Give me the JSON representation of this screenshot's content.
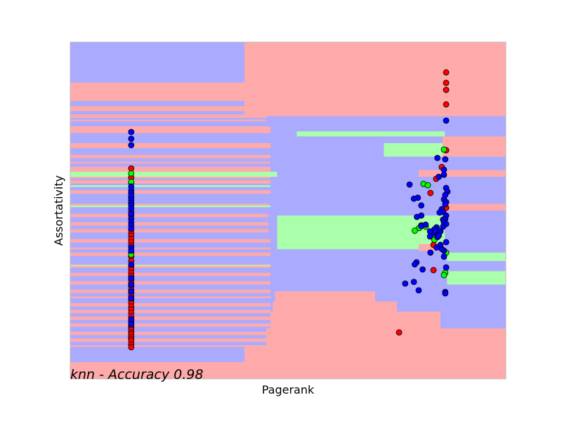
{
  "chart_data": {
    "type": "scatter",
    "title": "",
    "xlabel": "Pagerank",
    "ylabel": "Assortativity",
    "annotation": "knn - Accuracy 0.98",
    "xlim": [
      0,
      100
    ],
    "ylim": [
      0,
      100
    ],
    "ticks_visible": false,
    "grid": false,
    "legend": "none",
    "colors": {
      "region_red": "#FFAAAA",
      "region_green": "#AAFFAA",
      "region_blue": "#AAAAFF",
      "point_red": "#FF0000",
      "point_green": "#00FF00",
      "point_blue": "#0000FF",
      "marker_edge": "#000000",
      "frame": "#bbbbbb"
    },
    "series": [
      {
        "name": "class_red",
        "color": "#FF0000",
        "points": [
          [
            14,
            62.5
          ],
          [
            14,
            59.8
          ],
          [
            14,
            58.3
          ],
          [
            14,
            53.8
          ],
          [
            14,
            49.6
          ],
          [
            14,
            48.5
          ],
          [
            14,
            44.4
          ],
          [
            14,
            43.5
          ],
          [
            14,
            42.5
          ],
          [
            14,
            41.5
          ],
          [
            14,
            40.6
          ],
          [
            14,
            39.6
          ],
          [
            14,
            37.3
          ],
          [
            14,
            36.3
          ],
          [
            14,
            35.0
          ],
          [
            14,
            33.5
          ],
          [
            14,
            32.5
          ],
          [
            14,
            31.5
          ],
          [
            14,
            30.6
          ],
          [
            14,
            29.4
          ],
          [
            14,
            28.5
          ],
          [
            14,
            27.5
          ],
          [
            14,
            26.5
          ],
          [
            14,
            25.6
          ],
          [
            14,
            24.6
          ],
          [
            14,
            23.5
          ],
          [
            14,
            22.5
          ],
          [
            14,
            21.5
          ],
          [
            14,
            20.6
          ],
          [
            14,
            19.6
          ],
          [
            14,
            18.5
          ],
          [
            14,
            17.3
          ],
          [
            14,
            16.7
          ],
          [
            14,
            15.8
          ],
          [
            14,
            15.2
          ],
          [
            14,
            14.6
          ],
          [
            14,
            13.8
          ],
          [
            14,
            13.3
          ],
          [
            14,
            12.5
          ],
          [
            14,
            11.9
          ],
          [
            14,
            11.3
          ],
          [
            14,
            10.2
          ],
          [
            14,
            9.4
          ],
          [
            86.3,
            91.0
          ],
          [
            86.3,
            87.9
          ],
          [
            86.3,
            85.8
          ],
          [
            86.3,
            81.5
          ],
          [
            86.3,
            67.9
          ],
          [
            85.3,
            62.9
          ],
          [
            84.0,
            59.4
          ],
          [
            82.7,
            55.2
          ],
          [
            86.3,
            50.8
          ],
          [
            83.4,
            39.8
          ],
          [
            83.4,
            32.3
          ],
          [
            75.5,
            13.8
          ]
        ]
      },
      {
        "name": "class_green",
        "color": "#00FF00",
        "points": [
          [
            14,
            61.0
          ],
          [
            14,
            58.5
          ],
          [
            14,
            51.9
          ],
          [
            14,
            36.9
          ],
          [
            85.8,
            68.1
          ],
          [
            81.1,
            57.9
          ],
          [
            82.1,
            57.5
          ],
          [
            81.6,
            45.2
          ],
          [
            80.6,
            45.6
          ],
          [
            80.1,
            44.8
          ],
          [
            79.1,
            44.0
          ],
          [
            83.6,
            41.3
          ],
          [
            86.3,
            37.5
          ],
          [
            86.1,
            31.5
          ],
          [
            85.8,
            30.8
          ]
        ]
      },
      {
        "name": "class_blue",
        "color": "#0000FF",
        "points": [
          [
            14,
            73.3
          ],
          [
            14,
            71.3
          ],
          [
            14,
            69.4
          ],
          [
            14,
            57.1
          ],
          [
            14,
            56.0
          ],
          [
            14,
            55.2
          ],
          [
            14,
            54.3
          ],
          [
            14,
            53.1
          ],
          [
            14,
            52.3
          ],
          [
            14,
            51.5
          ],
          [
            14,
            50.6
          ],
          [
            14,
            49.0
          ],
          [
            14,
            47.5
          ],
          [
            14,
            46.5
          ],
          [
            14,
            45.6
          ],
          [
            14,
            44.6
          ],
          [
            14,
            39.0
          ],
          [
            14,
            38.1
          ],
          [
            14,
            34.0
          ],
          [
            14,
            29.9
          ],
          [
            14,
            28.0
          ],
          [
            14,
            26.0
          ],
          [
            14,
            24.0
          ],
          [
            14,
            17.7
          ],
          [
            14,
            16.2
          ],
          [
            86.3,
            76.7
          ],
          [
            84.3,
            65.6
          ],
          [
            86.1,
            65.2
          ],
          [
            85.8,
            62.1
          ],
          [
            85.8,
            60.6
          ],
          [
            86.3,
            56.7
          ],
          [
            86.6,
            55.6
          ],
          [
            86.1,
            54.6
          ],
          [
            85.8,
            53.3
          ],
          [
            86.3,
            52.5
          ],
          [
            86.1,
            51.9
          ],
          [
            85.3,
            50.4
          ],
          [
            85.6,
            49.6
          ],
          [
            84.8,
            49.4
          ],
          [
            86.3,
            48.5
          ],
          [
            86.1,
            47.5
          ],
          [
            85.6,
            47.3
          ],
          [
            85.8,
            46.5
          ],
          [
            86.3,
            46.0
          ],
          [
            84.3,
            42.1
          ],
          [
            86.3,
            40.6
          ],
          [
            85.8,
            38.1
          ],
          [
            85.8,
            36.3
          ],
          [
            86.3,
            33.1
          ],
          [
            86.1,
            25.8
          ],
          [
            86.1,
            25.4
          ],
          [
            84.1,
            45.0
          ],
          [
            83.6,
            43.5
          ],
          [
            83.1,
            43.1
          ],
          [
            82.6,
            42.3
          ],
          [
            85.0,
            43.8
          ],
          [
            85.6,
            45.2
          ],
          [
            84.3,
            44.2
          ],
          [
            83.6,
            44.4
          ],
          [
            84.6,
            42.5
          ],
          [
            82.7,
            37.5
          ],
          [
            81.6,
            45.8
          ],
          [
            79.8,
            53.8
          ],
          [
            78.9,
            53.5
          ],
          [
            80.6,
            48.5
          ],
          [
            79.6,
            48.1
          ],
          [
            80.6,
            51.5
          ],
          [
            77.9,
            57.7
          ],
          [
            80.6,
            45.4
          ],
          [
            82.6,
            43.8
          ],
          [
            83.8,
            44.0
          ],
          [
            84.1,
            39.0
          ],
          [
            85.3,
            38.6
          ],
          [
            85.0,
            39.8
          ],
          [
            80.9,
            32.5
          ],
          [
            79.5,
            34.6
          ],
          [
            79.1,
            34.0
          ],
          [
            76.9,
            28.3
          ],
          [
            78.9,
            28.8
          ],
          [
            80.0,
            26.3
          ],
          [
            84.6,
            60.0
          ]
        ]
      }
    ],
    "decision_regions": {
      "classifier": "knn",
      "classes": [
        "red",
        "green",
        "blue"
      ],
      "background_class": "blue",
      "rects": [
        {
          "x0": 0,
          "x1": 100,
          "y0": 0,
          "y1": 5,
          "c": "red"
        },
        {
          "x0": 40,
          "x1": 100,
          "y0": 5,
          "y1": 10,
          "c": "red"
        },
        {
          "x0": 45,
          "x1": 100,
          "y0": 10,
          "y1": 15,
          "c": "red"
        },
        {
          "x0": 46,
          "x1": 85,
          "y0": 15,
          "y1": 20,
          "c": "red"
        },
        {
          "x0": 46.5,
          "x1": 75,
          "y0": 20,
          "y1": 23,
          "c": "red"
        },
        {
          "x0": 47,
          "x1": 70,
          "y0": 23,
          "y1": 26,
          "c": "red"
        },
        {
          "x0": 75,
          "x1": 100,
          "y0": 5,
          "y1": 15,
          "c": "red"
        },
        {
          "x0": 0,
          "x1": 45.5,
          "y0": 82.5,
          "y1": 88,
          "c": "red"
        },
        {
          "x0": 0,
          "x1": 45.5,
          "y0": 79.5,
          "y1": 81,
          "c": "red"
        },
        {
          "x0": 0,
          "x1": 45,
          "y0": 77.5,
          "y1": 78.5,
          "c": "red"
        },
        {
          "x0": 0,
          "x1": 45,
          "y0": 76.5,
          "y1": 77,
          "c": "red"
        },
        {
          "x0": 0,
          "x1": 46,
          "y0": 73,
          "y1": 75,
          "c": "red"
        },
        {
          "x0": 0,
          "x1": 46,
          "y0": 68.5,
          "y1": 70,
          "c": "red"
        },
        {
          "x0": 0,
          "x1": 46,
          "y0": 65.5,
          "y1": 66.5,
          "c": "red"
        },
        {
          "x0": 0,
          "x1": 46,
          "y0": 64,
          "y1": 64.5,
          "c": "red"
        },
        {
          "x0": 0,
          "x1": 46,
          "y0": 61.5,
          "y1": 63,
          "c": "red"
        },
        {
          "x0": 0,
          "x1": 46,
          "y0": 59.5,
          "y1": 60.5,
          "c": "red"
        },
        {
          "x0": 0,
          "x1": 46,
          "y0": 58,
          "y1": 59,
          "c": "red"
        },
        {
          "x0": 0,
          "x1": 46,
          "y0": 55,
          "y1": 56,
          "c": "red"
        },
        {
          "x0": 0,
          "x1": 45.5,
          "y0": 51,
          "y1": 52,
          "c": "red"
        },
        {
          "x0": 0,
          "x1": 45.5,
          "y0": 48,
          "y1": 49,
          "c": "red"
        },
        {
          "x0": 0,
          "x1": 45.5,
          "y0": 45.5,
          "y1": 46.5,
          "c": "red"
        },
        {
          "x0": 0,
          "x1": 45.5,
          "y0": 43.5,
          "y1": 44.5,
          "c": "red"
        },
        {
          "x0": 0,
          "x1": 46,
          "y0": 40.5,
          "y1": 41.5,
          "c": "red"
        },
        {
          "x0": 0,
          "x1": 46,
          "y0": 38.5,
          "y1": 39,
          "c": "red"
        },
        {
          "x0": 0,
          "x1": 46,
          "y0": 36.5,
          "y1": 37.5,
          "c": "red"
        },
        {
          "x0": 0,
          "x1": 46,
          "y0": 33,
          "y1": 34,
          "c": "red"
        },
        {
          "x0": 0,
          "x1": 46,
          "y0": 30.5,
          "y1": 31.5,
          "c": "red"
        },
        {
          "x0": 0,
          "x1": 46,
          "y0": 28,
          "y1": 29,
          "c": "red"
        },
        {
          "x0": 0,
          "x1": 46,
          "y0": 25.5,
          "y1": 26.5,
          "c": "red"
        },
        {
          "x0": 0,
          "x1": 46,
          "y0": 24,
          "y1": 24.5,
          "c": "red"
        },
        {
          "x0": 0,
          "x1": 46,
          "y0": 21.5,
          "y1": 22.5,
          "c": "red"
        },
        {
          "x0": 0,
          "x1": 46,
          "y0": 19.5,
          "y1": 20.5,
          "c": "red"
        },
        {
          "x0": 0,
          "x1": 46,
          "y0": 17.5,
          "y1": 18.5,
          "c": "red"
        },
        {
          "x0": 0,
          "x1": 46,
          "y0": 15.5,
          "y1": 16.5,
          "c": "red"
        },
        {
          "x0": 0,
          "x1": 46,
          "y0": 13,
          "y1": 14,
          "c": "red"
        },
        {
          "x0": 0,
          "x1": 46,
          "y0": 11,
          "y1": 12,
          "c": "red"
        },
        {
          "x0": 0,
          "x1": 46,
          "y0": 9.5,
          "y1": 10,
          "c": "red"
        },
        {
          "x0": 0,
          "x1": 47.5,
          "y0": 60,
          "y1": 61.5,
          "c": "green"
        },
        {
          "x0": 0,
          "x1": 46,
          "y0": 57,
          "y1": 57.5,
          "c": "green"
        },
        {
          "x0": 0,
          "x1": 46,
          "y0": 51,
          "y1": 51.5,
          "c": "green"
        },
        {
          "x0": 0,
          "x1": 46,
          "y0": 33.5,
          "y1": 33.8,
          "c": "green"
        },
        {
          "x0": 47.5,
          "x1": 86,
          "y0": 38.5,
          "y1": 48.5,
          "c": "green"
        },
        {
          "x0": 52,
          "x1": 86,
          "y0": 72,
          "y1": 73.5,
          "c": "green"
        },
        {
          "x0": 72,
          "x1": 100,
          "y0": 66,
          "y1": 70,
          "c": "green"
        },
        {
          "x0": 86.5,
          "x1": 100,
          "y0": 35,
          "y1": 37.5,
          "c": "green"
        },
        {
          "x0": 86.5,
          "x1": 100,
          "y0": 28,
          "y1": 32,
          "c": "green"
        },
        {
          "x0": 55,
          "x1": 100,
          "y0": 0,
          "y1": 0,
          "c": "red"
        },
        {
          "x0": 40,
          "x1": 100,
          "y0": 78,
          "y1": 100,
          "c": "red"
        },
        {
          "x0": 85.5,
          "x1": 100,
          "y0": 66,
          "y1": 72,
          "c": "red"
        },
        {
          "x0": 80,
          "x1": 100,
          "y0": 60,
          "y1": 62,
          "c": "red"
        },
        {
          "x0": 86.5,
          "x1": 100,
          "y0": 50,
          "y1": 52,
          "c": "red"
        },
        {
          "x0": 80,
          "x1": 86,
          "y0": 38,
          "y1": 40,
          "c": "red"
        }
      ]
    }
  }
}
